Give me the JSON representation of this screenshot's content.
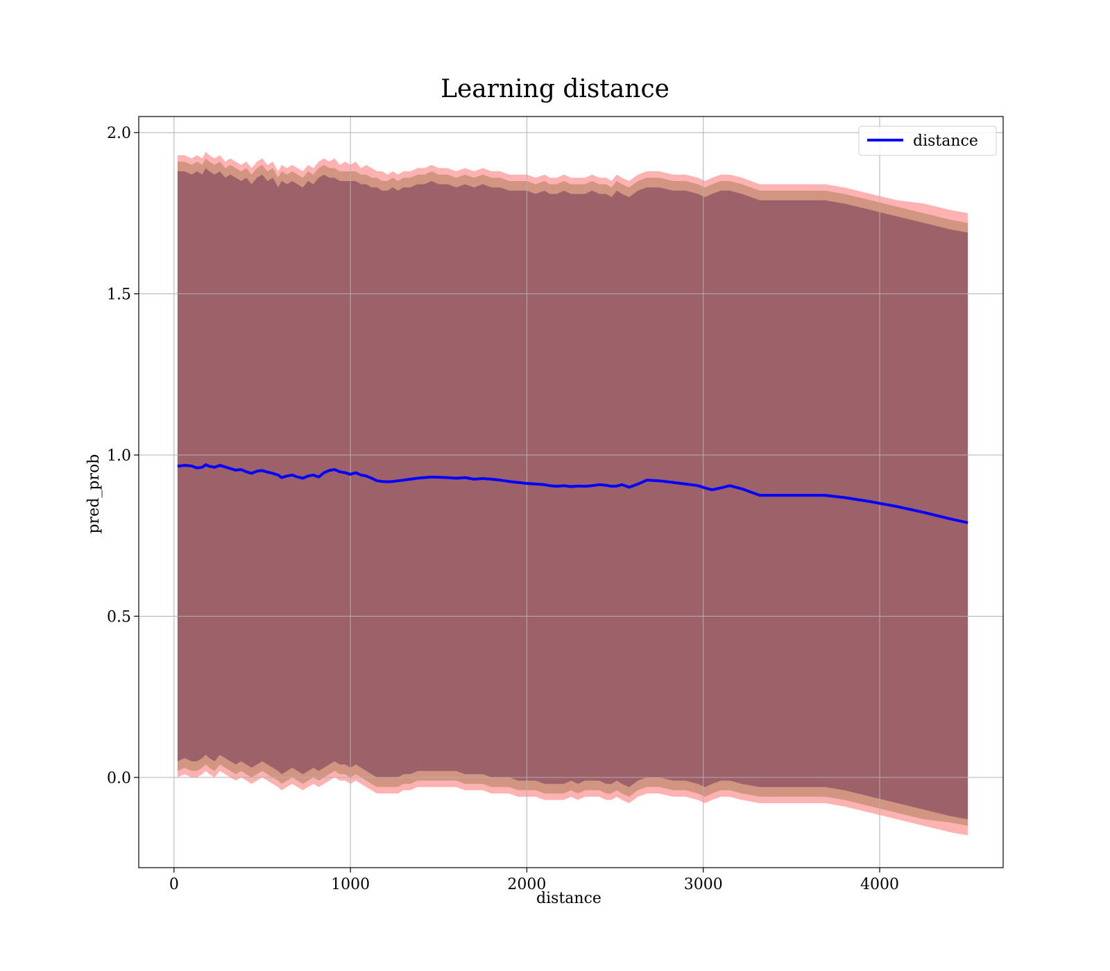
{
  "chart_data": {
    "type": "line",
    "title": "Learning distance",
    "xlabel": "distance",
    "ylabel": "pred_prob",
    "xlim": [
      -200,
      4700
    ],
    "ylim": [
      -0.28,
      2.05
    ],
    "x_ticks": [
      0,
      1000,
      2000,
      3000,
      4000
    ],
    "x_tick_labels": [
      "0",
      "1000",
      "2000",
      "3000",
      "4000"
    ],
    "y_ticks": [
      0.0,
      0.5,
      1.0,
      1.5,
      2.0
    ],
    "y_tick_labels": [
      "0.0",
      "0.5",
      "1.0",
      "1.5",
      "2.0"
    ],
    "grid": true,
    "legend": {
      "placement": "upper-right",
      "entries": [
        "distance"
      ]
    },
    "series": [
      {
        "name": "distance",
        "color": "#0000ff",
        "x": [
          20,
          60,
          100,
          130,
          160,
          180,
          200,
          230,
          260,
          290,
          320,
          350,
          380,
          410,
          440,
          470,
          500,
          530,
          560,
          590,
          610,
          640,
          670,
          700,
          730,
          760,
          790,
          820,
          850,
          880,
          910,
          940,
          970,
          1000,
          1030,
          1060,
          1090,
          1120,
          1150,
          1180,
          1210,
          1240,
          1270,
          1300,
          1340,
          1380,
          1420,
          1460,
          1500,
          1550,
          1600,
          1650,
          1700,
          1750,
          1800,
          1850,
          1900,
          1950,
          2000,
          2050,
          2100,
          2130,
          2170,
          2210,
          2250,
          2290,
          2330,
          2370,
          2410,
          2450,
          2480,
          2510,
          2540,
          2580,
          2630,
          2680,
          2750,
          2830,
          2900,
          2970,
          3010,
          3050,
          3100,
          3150,
          3220,
          3320,
          3450,
          3580,
          3690,
          3800,
          3950,
          4100,
          4250,
          4400,
          4500
        ]
      }
    ],
    "bands": [
      {
        "name": "outer",
        "color": "#ff0000",
        "opacity": 0.3,
        "upper": [
          1.93,
          1.93,
          1.92,
          1.93,
          1.92,
          1.94,
          1.93,
          1.92,
          1.93,
          1.91,
          1.92,
          1.91,
          1.9,
          1.91,
          1.89,
          1.91,
          1.92,
          1.9,
          1.91,
          1.88,
          1.9,
          1.89,
          1.9,
          1.89,
          1.88,
          1.9,
          1.89,
          1.91,
          1.92,
          1.91,
          1.92,
          1.9,
          1.91,
          1.9,
          1.91,
          1.89,
          1.9,
          1.89,
          1.88,
          1.88,
          1.87,
          1.88,
          1.87,
          1.88,
          1.88,
          1.89,
          1.89,
          1.9,
          1.89,
          1.89,
          1.88,
          1.89,
          1.88,
          1.89,
          1.88,
          1.88,
          1.87,
          1.87,
          1.87,
          1.86,
          1.87,
          1.86,
          1.86,
          1.87,
          1.86,
          1.86,
          1.86,
          1.87,
          1.86,
          1.86,
          1.85,
          1.87,
          1.86,
          1.85,
          1.87,
          1.88,
          1.88,
          1.87,
          1.87,
          1.86,
          1.85,
          1.86,
          1.87,
          1.87,
          1.86,
          1.84,
          1.84,
          1.84,
          1.84,
          1.83,
          1.81,
          1.79,
          1.78,
          1.76,
          1.75
        ],
        "lower": [
          0.0,
          0.01,
          0.0,
          0.0,
          0.01,
          0.02,
          0.01,
          0.0,
          0.02,
          0.01,
          0.0,
          -0.01,
          0.0,
          -0.01,
          -0.02,
          -0.01,
          0.0,
          -0.01,
          -0.02,
          -0.03,
          -0.04,
          -0.03,
          -0.02,
          -0.03,
          -0.04,
          -0.03,
          -0.02,
          -0.03,
          -0.02,
          -0.01,
          0.0,
          -0.01,
          -0.01,
          -0.02,
          -0.01,
          -0.02,
          -0.03,
          -0.04,
          -0.05,
          -0.05,
          -0.05,
          -0.05,
          -0.05,
          -0.04,
          -0.04,
          -0.03,
          -0.03,
          -0.03,
          -0.03,
          -0.03,
          -0.03,
          -0.04,
          -0.04,
          -0.04,
          -0.05,
          -0.05,
          -0.05,
          -0.06,
          -0.06,
          -0.06,
          -0.07,
          -0.07,
          -0.07,
          -0.07,
          -0.06,
          -0.07,
          -0.06,
          -0.06,
          -0.06,
          -0.07,
          -0.07,
          -0.06,
          -0.07,
          -0.08,
          -0.06,
          -0.05,
          -0.05,
          -0.06,
          -0.06,
          -0.07,
          -0.08,
          -0.07,
          -0.06,
          -0.06,
          -0.07,
          -0.08,
          -0.08,
          -0.08,
          -0.08,
          -0.09,
          -0.11,
          -0.13,
          -0.15,
          -0.17,
          -0.18
        ]
      },
      {
        "name": "middle",
        "color": "#8b6a3a",
        "opacity": 0.4,
        "upper": [
          1.91,
          1.91,
          1.9,
          1.91,
          1.9,
          1.92,
          1.91,
          1.9,
          1.91,
          1.89,
          1.9,
          1.89,
          1.88,
          1.89,
          1.87,
          1.89,
          1.9,
          1.88,
          1.89,
          1.86,
          1.88,
          1.87,
          1.88,
          1.87,
          1.86,
          1.88,
          1.87,
          1.89,
          1.9,
          1.89,
          1.89,
          1.88,
          1.88,
          1.88,
          1.88,
          1.87,
          1.87,
          1.86,
          1.86,
          1.85,
          1.85,
          1.86,
          1.85,
          1.86,
          1.86,
          1.87,
          1.87,
          1.88,
          1.87,
          1.87,
          1.86,
          1.87,
          1.86,
          1.87,
          1.86,
          1.86,
          1.85,
          1.85,
          1.85,
          1.84,
          1.85,
          1.84,
          1.84,
          1.85,
          1.84,
          1.84,
          1.84,
          1.85,
          1.84,
          1.84,
          1.83,
          1.85,
          1.84,
          1.83,
          1.85,
          1.86,
          1.86,
          1.85,
          1.85,
          1.84,
          1.83,
          1.84,
          1.85,
          1.85,
          1.84,
          1.82,
          1.82,
          1.82,
          1.82,
          1.81,
          1.79,
          1.77,
          1.75,
          1.73,
          1.72
        ],
        "lower": [
          0.02,
          0.03,
          0.02,
          0.02,
          0.03,
          0.04,
          0.03,
          0.02,
          0.04,
          0.03,
          0.02,
          0.01,
          0.02,
          0.01,
          0.0,
          0.01,
          0.02,
          0.01,
          0.0,
          -0.01,
          -0.02,
          -0.01,
          0.0,
          -0.01,
          -0.02,
          -0.01,
          0.0,
          -0.01,
          0.0,
          0.01,
          0.02,
          0.01,
          0.01,
          0.0,
          0.01,
          0.0,
          -0.01,
          -0.02,
          -0.03,
          -0.03,
          -0.03,
          -0.03,
          -0.03,
          -0.02,
          -0.02,
          -0.01,
          -0.01,
          -0.01,
          -0.01,
          -0.01,
          -0.01,
          -0.02,
          -0.02,
          -0.02,
          -0.03,
          -0.03,
          -0.03,
          -0.04,
          -0.04,
          -0.04,
          -0.05,
          -0.05,
          -0.05,
          -0.05,
          -0.04,
          -0.05,
          -0.04,
          -0.04,
          -0.04,
          -0.05,
          -0.05,
          -0.04,
          -0.05,
          -0.06,
          -0.04,
          -0.03,
          -0.03,
          -0.04,
          -0.04,
          -0.05,
          -0.06,
          -0.05,
          -0.04,
          -0.04,
          -0.05,
          -0.06,
          -0.06,
          -0.06,
          -0.06,
          -0.07,
          -0.09,
          -0.11,
          -0.13,
          -0.14,
          -0.15
        ]
      },
      {
        "name": "inner",
        "color": "#7a3f5a",
        "opacity": 0.6,
        "upper": [
          1.88,
          1.88,
          1.87,
          1.88,
          1.87,
          1.89,
          1.88,
          1.87,
          1.88,
          1.86,
          1.87,
          1.86,
          1.85,
          1.86,
          1.84,
          1.86,
          1.87,
          1.85,
          1.86,
          1.83,
          1.85,
          1.84,
          1.85,
          1.84,
          1.83,
          1.85,
          1.84,
          1.86,
          1.87,
          1.86,
          1.86,
          1.85,
          1.85,
          1.85,
          1.85,
          1.84,
          1.84,
          1.83,
          1.83,
          1.82,
          1.82,
          1.83,
          1.82,
          1.83,
          1.83,
          1.84,
          1.84,
          1.85,
          1.84,
          1.84,
          1.83,
          1.84,
          1.83,
          1.84,
          1.83,
          1.83,
          1.82,
          1.82,
          1.82,
          1.81,
          1.82,
          1.81,
          1.81,
          1.82,
          1.81,
          1.81,
          1.81,
          1.82,
          1.81,
          1.81,
          1.8,
          1.82,
          1.81,
          1.8,
          1.82,
          1.83,
          1.83,
          1.82,
          1.82,
          1.81,
          1.8,
          1.81,
          1.82,
          1.82,
          1.81,
          1.79,
          1.79,
          1.79,
          1.79,
          1.78,
          1.76,
          1.74,
          1.72,
          1.7,
          1.69
        ],
        "lower": [
          0.05,
          0.06,
          0.05,
          0.05,
          0.06,
          0.07,
          0.06,
          0.05,
          0.07,
          0.06,
          0.05,
          0.04,
          0.05,
          0.04,
          0.03,
          0.04,
          0.05,
          0.04,
          0.03,
          0.02,
          0.01,
          0.02,
          0.03,
          0.02,
          0.01,
          0.02,
          0.03,
          0.02,
          0.03,
          0.04,
          0.05,
          0.04,
          0.04,
          0.03,
          0.04,
          0.03,
          0.02,
          0.01,
          0.0,
          0.0,
          0.0,
          0.0,
          0.0,
          0.01,
          0.01,
          0.02,
          0.02,
          0.02,
          0.02,
          0.02,
          0.02,
          0.01,
          0.01,
          0.01,
          0.0,
          0.0,
          0.0,
          -0.01,
          -0.01,
          -0.01,
          -0.02,
          -0.02,
          -0.02,
          -0.02,
          -0.01,
          -0.02,
          -0.01,
          -0.01,
          -0.01,
          -0.02,
          -0.02,
          -0.01,
          -0.02,
          -0.03,
          -0.01,
          0.0,
          0.0,
          -0.01,
          -0.01,
          -0.02,
          -0.03,
          -0.02,
          -0.01,
          -0.01,
          -0.02,
          -0.03,
          -0.03,
          -0.03,
          -0.03,
          -0.04,
          -0.06,
          -0.08,
          -0.1,
          -0.12,
          -0.13
        ]
      }
    ],
    "line_y": [
      0.965,
      0.968,
      0.966,
      0.96,
      0.962,
      0.97,
      0.965,
      0.962,
      0.968,
      0.963,
      0.958,
      0.953,
      0.955,
      0.948,
      0.943,
      0.95,
      0.952,
      0.947,
      0.943,
      0.938,
      0.93,
      0.935,
      0.938,
      0.932,
      0.928,
      0.935,
      0.938,
      0.932,
      0.945,
      0.952,
      0.955,
      0.948,
      0.945,
      0.94,
      0.945,
      0.938,
      0.935,
      0.928,
      0.92,
      0.918,
      0.917,
      0.918,
      0.92,
      0.922,
      0.925,
      0.928,
      0.93,
      0.932,
      0.931,
      0.93,
      0.928,
      0.93,
      0.925,
      0.927,
      0.925,
      0.922,
      0.918,
      0.915,
      0.912,
      0.91,
      0.908,
      0.905,
      0.903,
      0.905,
      0.902,
      0.904,
      0.903,
      0.905,
      0.908,
      0.906,
      0.903,
      0.904,
      0.908,
      0.9,
      0.91,
      0.922,
      0.92,
      0.915,
      0.91,
      0.905,
      0.898,
      0.892,
      0.898,
      0.905,
      0.895,
      0.875,
      0.875,
      0.875,
      0.875,
      0.868,
      0.855,
      0.84,
      0.822,
      0.802,
      0.79
    ]
  }
}
